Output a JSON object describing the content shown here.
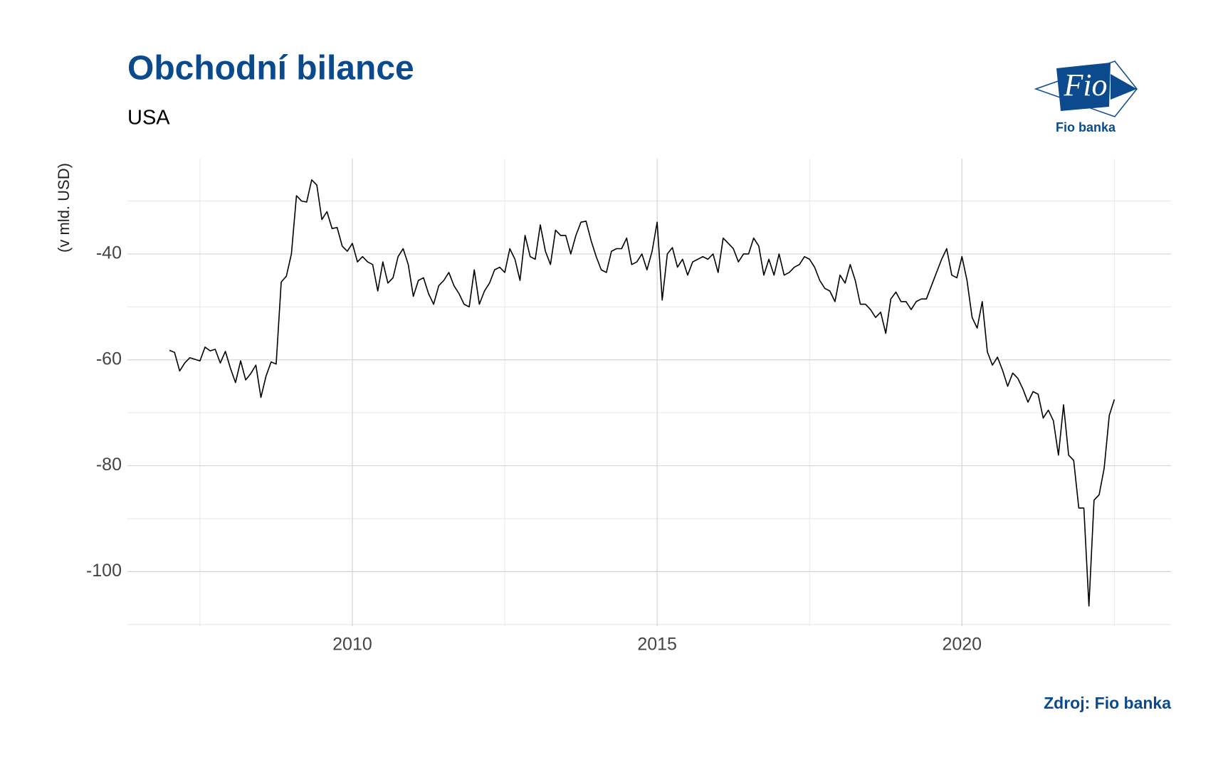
{
  "chart_data": {
    "type": "line",
    "title": "Obchodní bilance",
    "subtitle": "USA",
    "y_label": "(v mld. USD)",
    "source": "Zdroj: Fio banka",
    "color": "#000000",
    "xlim": [
      2006.31,
      2023.43
    ],
    "ylim": [
      -110.3,
      -22
    ],
    "xticks": [
      2010,
      2015,
      2020
    ],
    "yticks": [
      -100,
      -80,
      -60,
      -40
    ],
    "xminor": [
      2007.5,
      2012.5,
      2017.5,
      2022.5
    ],
    "yminor": [
      -110,
      -90,
      -70,
      -50,
      -30
    ],
    "grid": true,
    "x": [
      2007,
      2007.083,
      2007.167,
      2007.25,
      2007.333,
      2007.417,
      2007.5,
      2007.583,
      2007.667,
      2007.75,
      2007.833,
      2007.917,
      2008,
      2008.083,
      2008.167,
      2008.25,
      2008.333,
      2008.417,
      2008.5,
      2008.583,
      2008.667,
      2008.75,
      2008.833,
      2008.917,
      2009,
      2009.083,
      2009.167,
      2009.25,
      2009.333,
      2009.417,
      2009.5,
      2009.583,
      2009.667,
      2009.75,
      2009.833,
      2009.917,
      2010,
      2010.083,
      2010.167,
      2010.25,
      2010.333,
      2010.417,
      2010.5,
      2010.583,
      2010.667,
      2010.75,
      2010.833,
      2010.917,
      2011,
      2011.083,
      2011.167,
      2011.25,
      2011.333,
      2011.417,
      2011.5,
      2011.583,
      2011.667,
      2011.75,
      2011.833,
      2011.917,
      2012,
      2012.083,
      2012.167,
      2012.25,
      2012.333,
      2012.417,
      2012.5,
      2012.583,
      2012.667,
      2012.75,
      2012.833,
      2012.917,
      2013,
      2013.083,
      2013.167,
      2013.25,
      2013.333,
      2013.417,
      2013.5,
      2013.583,
      2013.667,
      2013.75,
      2013.833,
      2013.917,
      2014,
      2014.083,
      2014.167,
      2014.25,
      2014.333,
      2014.417,
      2014.5,
      2014.583,
      2014.667,
      2014.75,
      2014.833,
      2014.917,
      2015,
      2015.083,
      2015.167,
      2015.25,
      2015.333,
      2015.417,
      2015.5,
      2015.583,
      2015.667,
      2015.75,
      2015.833,
      2015.917,
      2016,
      2016.083,
      2016.167,
      2016.25,
      2016.333,
      2016.417,
      2016.5,
      2016.583,
      2016.667,
      2016.75,
      2016.833,
      2016.917,
      2017,
      2017.083,
      2017.167,
      2017.25,
      2017.333,
      2017.417,
      2017.5,
      2017.583,
      2017.667,
      2017.75,
      2017.833,
      2017.917,
      2018,
      2018.083,
      2018.167,
      2018.25,
      2018.333,
      2018.417,
      2018.5,
      2018.583,
      2018.667,
      2018.75,
      2018.833,
      2018.917,
      2019,
      2019.083,
      2019.167,
      2019.25,
      2019.333,
      2019.417,
      2019.5,
      2019.583,
      2019.667,
      2019.75,
      2019.833,
      2019.917,
      2020,
      2020.083,
      2020.167,
      2020.25,
      2020.333,
      2020.417,
      2020.5,
      2020.583,
      2020.667,
      2020.75,
      2020.833,
      2020.917,
      2021,
      2021.083,
      2021.167,
      2021.25,
      2021.333,
      2021.417,
      2021.5,
      2021.583,
      2021.667,
      2021.75,
      2021.833,
      2021.917,
      2022,
      2022.083,
      2022.167,
      2022.25,
      2022.333,
      2022.417,
      2022.5
    ],
    "values": [
      -58.2,
      -58.6,
      -62.1,
      -60.6,
      -59.6,
      -59.9,
      -60.2,
      -57.6,
      -58.3,
      -58.0,
      -60.6,
      -58.4,
      -61.6,
      -64.3,
      -60.2,
      -63.8,
      -62.6,
      -61.0,
      -67.1,
      -63.1,
      -60.4,
      -60.8,
      -45.3,
      -44.2,
      -40,
      -29,
      -30,
      -30.2,
      -26,
      -27,
      -33.5,
      -32,
      -35.2,
      -35,
      -38.5,
      -39.5,
      -38,
      -41.5,
      -40.5,
      -41.5,
      -42,
      -47,
      -41.5,
      -45.5,
      -44.5,
      -40.5,
      -39,
      -42,
      -48,
      -45,
      -44.5,
      -47.5,
      -49.5,
      -46,
      -45,
      -43.5,
      -46,
      -47.5,
      -49.5,
      -50,
      -43,
      -49.5,
      -47,
      -45.5,
      -43,
      -42.5,
      -43.5,
      -39,
      -41,
      -45,
      -36.5,
      -40.5,
      -41,
      -34.5,
      -39.5,
      -42,
      -35.5,
      -36.5,
      -36.5,
      -40,
      -36.5,
      -34,
      -33.8,
      -37.5,
      -40.5,
      -43,
      -43.5,
      -39.5,
      -39,
      -39,
      -37,
      -42,
      -41.5,
      -40,
      -43,
      -39.5,
      -34,
      -48.7,
      -40,
      -38.8,
      -42.5,
      -41,
      -44,
      -41.5,
      -41,
      -40.5,
      -41,
      -40,
      -43.5,
      -37,
      -38,
      -39,
      -41.5,
      -40,
      -40,
      -37,
      -38.5,
      -44,
      -41,
      -44,
      -40,
      -44,
      -43.5,
      -42.5,
      -42,
      -40.5,
      -41,
      -42.5,
      -45,
      -46.5,
      -47,
      -49,
      -44,
      -45.5,
      -42,
      -45,
      -49.5,
      -49.5,
      -50.5,
      -52,
      -51,
      -55,
      -48.5,
      -47.2,
      -49,
      -49,
      -50.5,
      -49,
      -48.5,
      -48.5,
      -46,
      -43.5,
      -41,
      -39,
      -44,
      -44.5,
      -40.5,
      -45,
      -52,
      -54,
      -49,
      -58.5,
      -61,
      -59.5,
      -62,
      -65,
      -62.5,
      -63.5,
      -65.5,
      -68,
      -66,
      -66.5,
      -71,
      -69.5,
      -71.5,
      -78,
      -68.5,
      -78,
      -79,
      -88,
      -88,
      -106.5,
      -86.5,
      -85.5,
      -80.5,
      -70.5,
      -67.5
    ]
  },
  "logo": {
    "mark": "Fio",
    "caption": "Fio banka"
  }
}
